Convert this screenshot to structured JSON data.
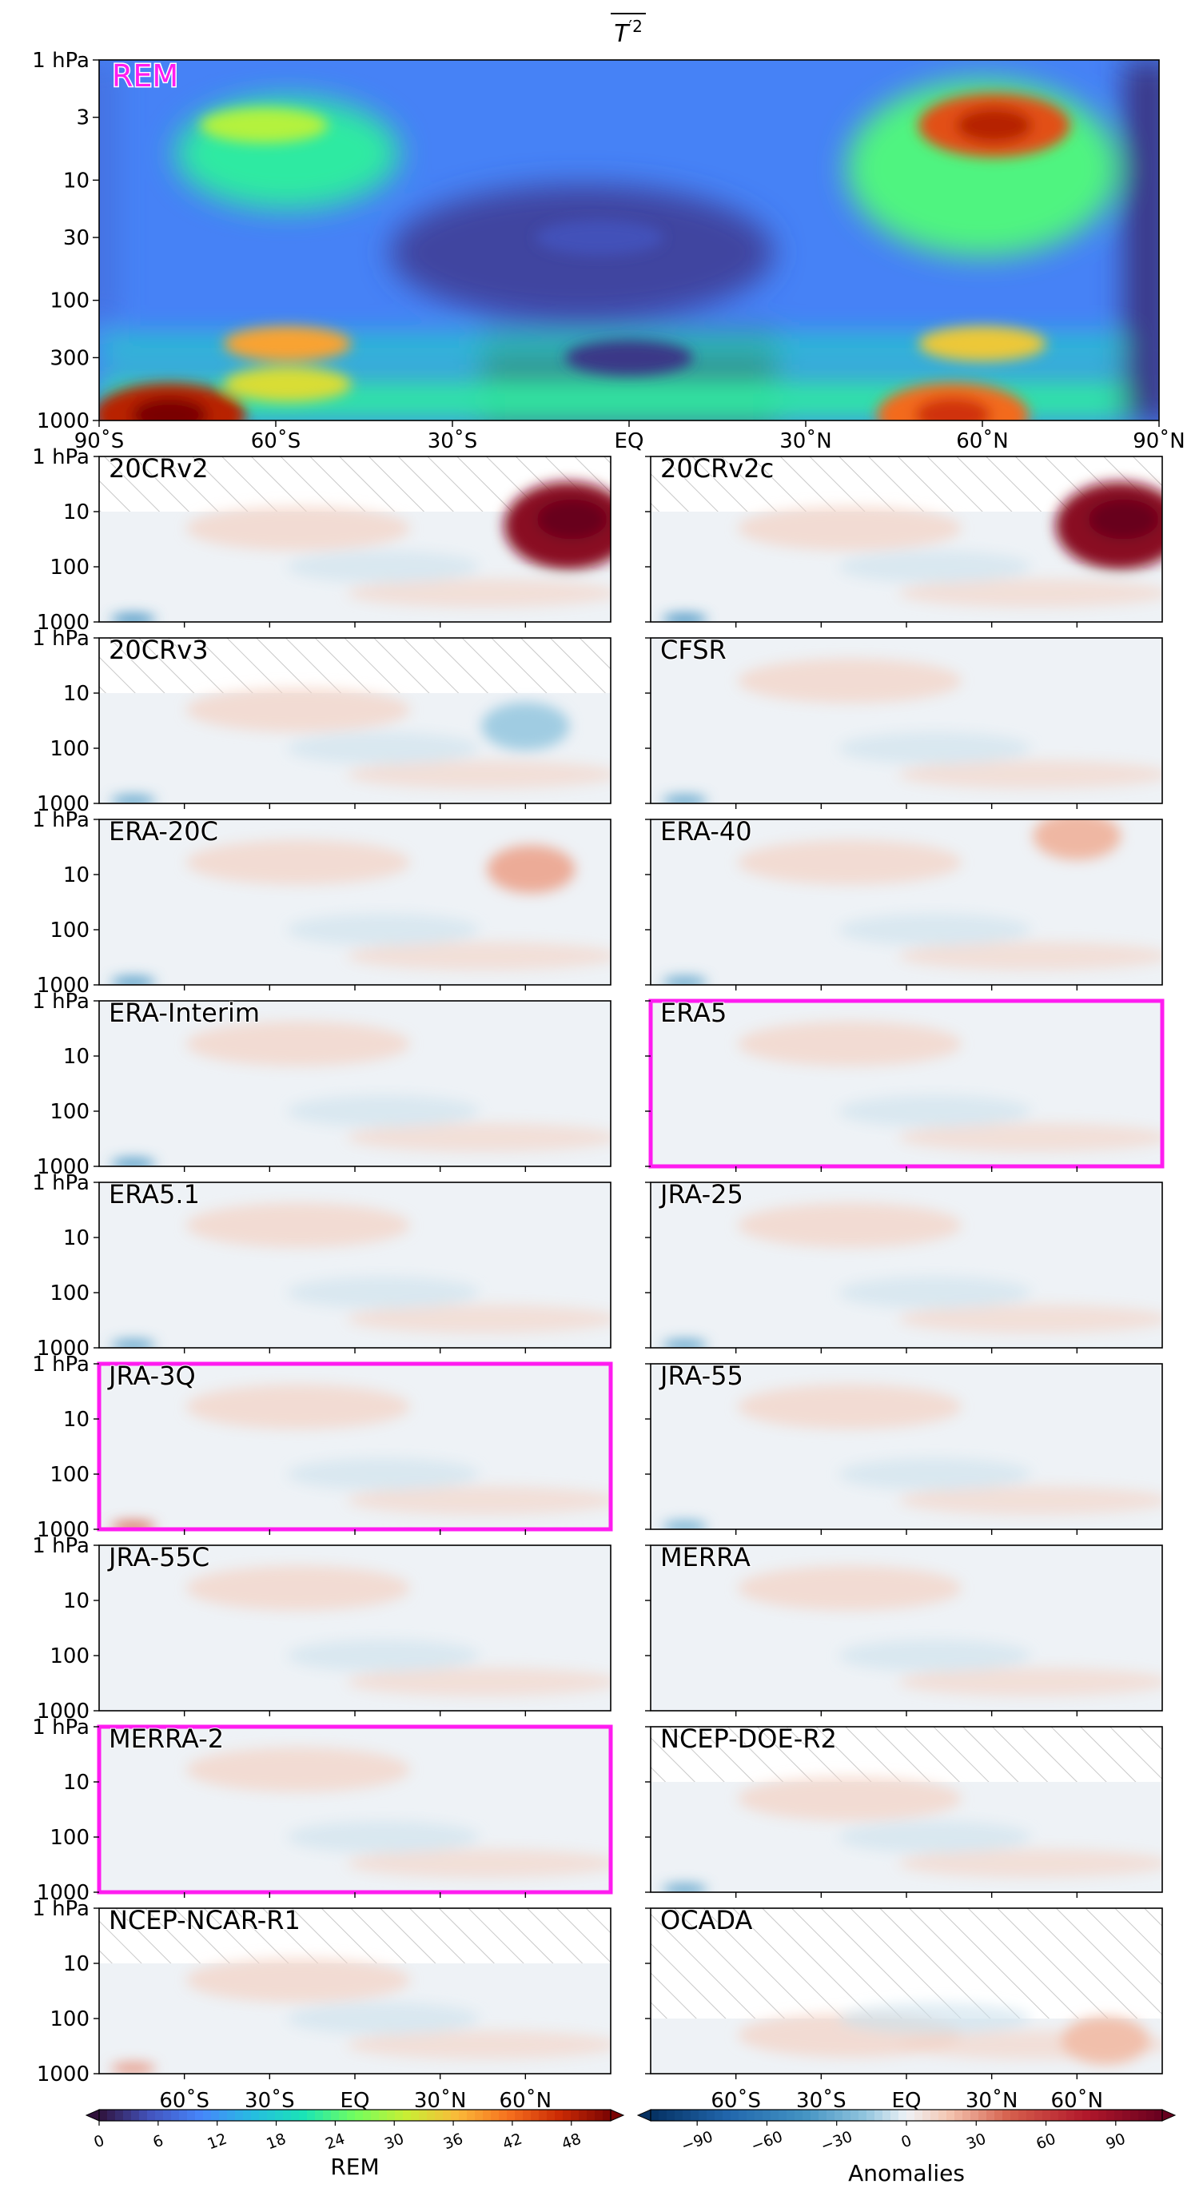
{
  "figure": {
    "title_base": "T",
    "title_sup": "′2",
    "lat_ticks": [
      "90˚S",
      "60˚S",
      "30˚S",
      "EQ",
      "30˚N",
      "60˚N",
      "90˚N"
    ],
    "bottom_lat_ticks": [
      "60˚S",
      "30˚S",
      "EQ",
      "30˚N",
      "60˚N"
    ],
    "pressure_ticks_main": [
      "1 hPa",
      "3",
      "10",
      "30",
      "100",
      "300",
      "1000"
    ],
    "pressure_ticks_small": [
      "1 hPa",
      "10",
      "100",
      "1000"
    ],
    "colors": {
      "highlight": "#ff1cf0",
      "hatch": "#c8c8c8",
      "anomaly_bg": "#eef2f6"
    }
  },
  "chart_data": [
    {
      "type": "heatmap",
      "name": "REM",
      "label": "REM",
      "x_range": [
        -90,
        90
      ],
      "y_range_hpa": [
        1,
        1000
      ],
      "y_scale": "log",
      "colormap": "turbo",
      "features": [
        {
          "lat": 62,
          "p": 3.5,
          "value": 44
        },
        {
          "lat": -62,
          "p": 3.5,
          "value": 30
        },
        {
          "lat": -78,
          "p": 900,
          "value": 48
        },
        {
          "lat": 60,
          "p": 230,
          "value": 35
        },
        {
          "lat": -58,
          "p": 230,
          "value": 38
        },
        {
          "lat": -58,
          "p": 500,
          "value": 33
        },
        {
          "lat": 55,
          "p": 900,
          "value": 42
        },
        {
          "lat": 0,
          "p": 300,
          "value": 3
        },
        {
          "lat": -5,
          "p": 30,
          "value": 5
        }
      ]
    },
    {
      "type": "heatmap",
      "label_kind": "Anomalies",
      "colormap": "RdBu_r",
      "panels": [
        {
          "name": "20CRv2",
          "top_hpa": 10,
          "highlight": false,
          "features": [
            {
              "lat": 75,
              "p": 18,
              "value": 95
            },
            {
              "lat": -78,
              "p": 900,
              "value": -45
            }
          ]
        },
        {
          "name": "20CRv2c",
          "top_hpa": 10,
          "highlight": false,
          "features": [
            {
              "lat": 75,
              "p": 18,
              "value": 95
            },
            {
              "lat": -78,
              "p": 900,
              "value": -45
            }
          ]
        },
        {
          "name": "20CRv3",
          "top_hpa": 10,
          "highlight": false,
          "features": [
            {
              "lat": 60,
              "p": 40,
              "value": -15
            },
            {
              "lat": -78,
              "p": 900,
              "value": -35
            }
          ]
        },
        {
          "name": "CFSR",
          "top_hpa": 1,
          "highlight": false,
          "features": [
            {
              "lat": -78,
              "p": 900,
              "value": -35
            }
          ]
        },
        {
          "name": "ERA-20C",
          "top_hpa": 1,
          "highlight": false,
          "features": [
            {
              "lat": 62,
              "p": 8,
              "value": 25
            },
            {
              "lat": -78,
              "p": 900,
              "value": -40
            }
          ]
        },
        {
          "name": "ERA-40",
          "top_hpa": 1,
          "highlight": false,
          "features": [
            {
              "lat": 60,
              "p": 2,
              "value": 22
            },
            {
              "lat": -78,
              "p": 900,
              "value": -35
            }
          ]
        },
        {
          "name": "ERA-Interim",
          "top_hpa": 1,
          "highlight": false,
          "features": [
            {
              "lat": -78,
              "p": 900,
              "value": -40
            }
          ]
        },
        {
          "name": "ERA5",
          "top_hpa": 1,
          "highlight": true,
          "features": []
        },
        {
          "name": "ERA5.1",
          "top_hpa": 1,
          "highlight": false,
          "features": [
            {
              "lat": -78,
              "p": 900,
              "value": -35
            }
          ]
        },
        {
          "name": "JRA-25",
          "top_hpa": 1,
          "highlight": false,
          "features": [
            {
              "lat": -78,
              "p": 900,
              "value": -35
            }
          ]
        },
        {
          "name": "JRA-3Q",
          "top_hpa": 1,
          "highlight": true,
          "features": [
            {
              "lat": -78,
              "p": 900,
              "value": 40
            }
          ]
        },
        {
          "name": "JRA-55",
          "top_hpa": 1,
          "highlight": false,
          "features": [
            {
              "lat": -78,
              "p": 900,
              "value": -30
            }
          ]
        },
        {
          "name": "JRA-55C",
          "top_hpa": 1,
          "highlight": false,
          "features": []
        },
        {
          "name": "MERRA",
          "top_hpa": 1,
          "highlight": false,
          "features": []
        },
        {
          "name": "MERRA-2",
          "top_hpa": 1,
          "highlight": true,
          "features": []
        },
        {
          "name": "NCEP-DOE-R2",
          "top_hpa": 10,
          "highlight": false,
          "features": [
            {
              "lat": -78,
              "p": 900,
              "value": -35
            }
          ]
        },
        {
          "name": "NCEP-NCAR-R1",
          "top_hpa": 10,
          "highlight": false,
          "features": [
            {
              "lat": -78,
              "p": 800,
              "value": 30
            }
          ]
        },
        {
          "name": "OCADA",
          "top_hpa": 100,
          "highlight": false,
          "features": [
            {
              "lat": 70,
              "p": 250,
              "value": 20
            }
          ]
        }
      ]
    },
    {
      "type": "colorbar",
      "name": "REM",
      "label": "REM",
      "range": [
        0,
        52
      ],
      "ticks": [
        "0",
        "6",
        "12",
        "18",
        "24",
        "30",
        "36",
        "42",
        "48"
      ]
    },
    {
      "type": "colorbar",
      "name": "Anomalies",
      "label": "Anomalies",
      "range": [
        -110,
        110
      ],
      "ticks": [
        "−90",
        "−60",
        "−30",
        "0",
        "30",
        "60",
        "90"
      ]
    }
  ]
}
